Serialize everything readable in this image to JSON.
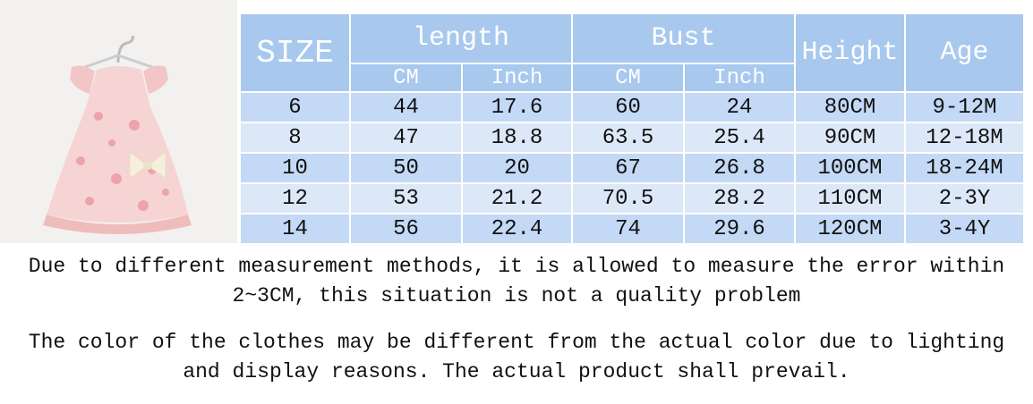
{
  "table": {
    "header": {
      "size": "SIZE",
      "length": "length",
      "bust": "Bust",
      "height": "Height",
      "age": "Age",
      "sub": [
        "CM",
        "Inch",
        "CM",
        "Inch"
      ]
    },
    "rows": [
      [
        "6",
        "44",
        "17.6",
        "60",
        "24",
        "80CM",
        "9-12M"
      ],
      [
        "8",
        "47",
        "18.8",
        "63.5",
        "25.4",
        "90CM",
        "12-18M"
      ],
      [
        "10",
        "50",
        "20",
        "67",
        "26.8",
        "100CM",
        "18-24M"
      ],
      [
        "12",
        "53",
        "21.2",
        "70.5",
        "28.2",
        "110CM",
        "2-3Y"
      ],
      [
        "14",
        "56",
        "22.4",
        "74",
        "29.6",
        "120CM",
        "3-4Y"
      ]
    ]
  },
  "notes": [
    "Due to different measurement methods, it is allowed to measure the error within 2~3CM, this situation is not a quality problem",
    "The color of the clothes may be different from the actual color due to lighting and display reasons. The actual product shall prevail."
  ]
}
